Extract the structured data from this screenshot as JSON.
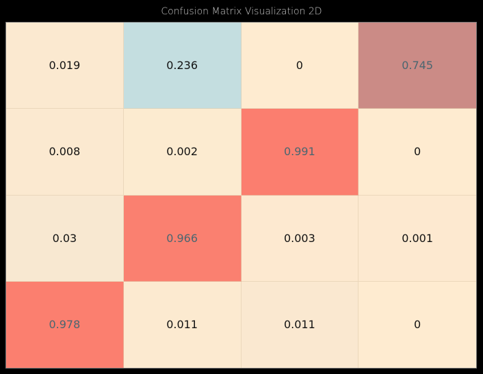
{
  "window": {
    "title": "Confusion Matrix Visualization 2D"
  },
  "chart_data": {
    "type": "heatmap",
    "title": "Confusion Matrix Visualization 2D",
    "rows": 4,
    "cols": 4,
    "values": [
      [
        "0.019",
        "0.236",
        "0",
        "0.745"
      ],
      [
        "0.008",
        "0.002",
        "0.991",
        "0"
      ],
      [
        "0.03",
        "0.966",
        "0.003",
        "0.001"
      ],
      [
        "0.978",
        "0.011",
        "0.011",
        "0"
      ]
    ],
    "colors": [
      [
        "#fbe9d0",
        "#c4dee0",
        "#feebd0",
        "#cb8b86"
      ],
      [
        "#fbe9d0",
        "#fcebd0",
        "#fb7e6f",
        "#feebd0"
      ],
      [
        "#f8e8d1",
        "#fa8070",
        "#fde9d0",
        "#fde9d0"
      ],
      [
        "#fb7f6f",
        "#fcead0",
        "#fae8d0",
        "#feebd0"
      ]
    ],
    "text_colors": [
      [
        "#111111",
        "#111111",
        "#111111",
        "#4a6670"
      ],
      [
        "#111111",
        "#111111",
        "#4a6670",
        "#111111"
      ],
      [
        "#111111",
        "#4a6670",
        "#111111",
        "#111111"
      ],
      [
        "#4a6670",
        "#111111",
        "#111111",
        "#111111"
      ]
    ]
  }
}
